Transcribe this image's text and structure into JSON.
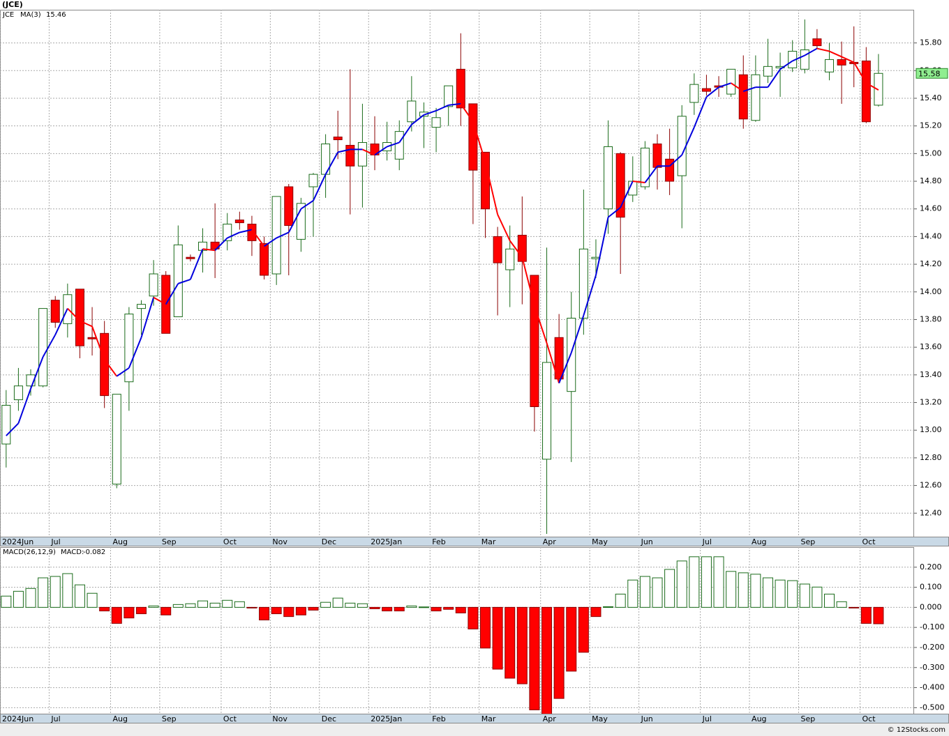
{
  "title": "(JCE)",
  "footer": "© 12Stocks.com",
  "chart_data": [
    {
      "type": "candlestick",
      "name": "JCE",
      "colors": {
        "up": "#1a6b1a",
        "down": "#ff0000"
      },
      "xlim": [
        -0.5,
        73.9
      ],
      "ylim": [
        12.23,
        16.04
      ],
      "grid": true,
      "xticks": [
        {
          "value": -0.5,
          "label": "2024Jun"
        },
        {
          "value": 3.5,
          "label": "Jul"
        },
        {
          "value": 8.5,
          "label": "Aug"
        },
        {
          "value": 12.5,
          "label": "Sep"
        },
        {
          "value": 17.5,
          "label": "Oct"
        },
        {
          "value": 21.5,
          "label": "Nov"
        },
        {
          "value": 25.5,
          "label": "Dec"
        },
        {
          "value": 29.5,
          "label": "2025Jan"
        },
        {
          "value": 34.5,
          "label": "Feb"
        },
        {
          "value": 38.5,
          "label": "Mar"
        },
        {
          "value": 43.5,
          "label": "Apr"
        },
        {
          "value": 47.5,
          "label": "May"
        },
        {
          "value": 51.5,
          "label": "Jun"
        },
        {
          "value": 56.5,
          "label": "Jul"
        },
        {
          "value": 60.5,
          "label": "Aug"
        },
        {
          "value": 64.5,
          "label": "Sep"
        },
        {
          "value": 69.5,
          "label": "Oct"
        }
      ],
      "yticks": [
        {
          "value": 12.4,
          "label": "12.40"
        },
        {
          "value": 12.6,
          "label": "12.60"
        },
        {
          "value": 12.8,
          "label": "12.80"
        },
        {
          "value": 13.0,
          "label": "13.00"
        },
        {
          "value": 13.2,
          "label": "13.20"
        },
        {
          "value": 13.4,
          "label": "13.40"
        },
        {
          "value": 13.6,
          "label": "13.60"
        },
        {
          "value": 13.8,
          "label": "13.80"
        },
        {
          "value": 14.0,
          "label": "14.00"
        },
        {
          "value": 14.2,
          "label": "14.20"
        },
        {
          "value": 14.4,
          "label": "14.40"
        },
        {
          "value": 14.6,
          "label": "14.60"
        },
        {
          "value": 14.8,
          "label": "14.80"
        },
        {
          "value": 15.0,
          "label": "15.00"
        },
        {
          "value": 15.2,
          "label": "15.20"
        },
        {
          "value": 15.4,
          "label": "15.40"
        },
        {
          "value": 15.6,
          "label": "15.60"
        },
        {
          "value": 15.8,
          "label": "15.80"
        }
      ],
      "open": [
        12.9,
        13.22,
        13.32,
        13.32,
        13.94,
        13.77,
        14.02,
        13.67,
        13.7,
        12.61,
        13.35,
        13.88,
        13.97,
        14.12,
        13.82,
        14.25,
        14.3,
        14.36,
        14.37,
        14.52,
        14.49,
        14.35,
        14.13,
        14.76,
        14.38,
        14.76,
        14.85,
        15.12,
        15.06,
        14.91,
        15.07,
        15.02,
        14.96,
        15.23,
        15.27,
        15.19,
        15.34,
        15.61,
        15.36,
        15.01,
        14.4,
        14.16,
        14.41,
        14.12,
        12.79,
        13.67,
        13.28,
        13.81,
        14.24,
        14.6,
        15.0,
        14.7,
        14.76,
        15.07,
        14.96,
        14.84,
        15.37,
        15.47,
        15.49,
        15.43,
        15.57,
        15.24,
        15.56,
        15.62,
        15.62,
        15.61,
        15.83,
        15.59,
        15.68,
        15.66,
        15.67,
        15.35
      ],
      "high": [
        13.29,
        13.45,
        13.44,
        13.88,
        13.97,
        14.06,
        14.02,
        13.89,
        13.79,
        13.26,
        13.89,
        13.94,
        14.23,
        14.15,
        14.48,
        14.27,
        14.46,
        14.64,
        14.57,
        14.58,
        14.55,
        14.4,
        14.69,
        14.78,
        14.68,
        14.86,
        15.14,
        15.31,
        15.61,
        15.36,
        15.27,
        15.23,
        15.24,
        15.56,
        15.37,
        15.33,
        15.49,
        15.87,
        15.36,
        15.01,
        14.47,
        14.48,
        14.69,
        14.12,
        14.32,
        13.84,
        14.0,
        14.74,
        14.38,
        15.24,
        15.01,
        14.98,
        15.09,
        15.14,
        15.18,
        15.35,
        15.58,
        15.57,
        15.56,
        15.61,
        15.71,
        15.71,
        15.83,
        15.73,
        15.82,
        15.97,
        15.9,
        15.8,
        15.81,
        15.92,
        15.77,
        15.72
      ],
      "low": [
        12.73,
        13.14,
        13.25,
        13.31,
        13.74,
        13.67,
        13.52,
        13.54,
        13.16,
        12.58,
        13.14,
        13.69,
        13.9,
        13.7,
        13.82,
        14.22,
        14.14,
        14.1,
        14.3,
        14.45,
        14.26,
        14.09,
        14.05,
        14.12,
        14.29,
        14.4,
        14.68,
        14.96,
        14.56,
        14.61,
        14.88,
        14.95,
        14.88,
        15.16,
        15.04,
        15.01,
        15.2,
        15.2,
        14.49,
        14.39,
        13.83,
        13.89,
        13.91,
        12.99,
        12.25,
        13.35,
        12.77,
        13.69,
        14.1,
        14.42,
        14.13,
        14.65,
        14.74,
        14.74,
        14.7,
        14.46,
        15.28,
        15.42,
        15.41,
        15.41,
        15.18,
        15.23,
        15.51,
        15.41,
        15.59,
        15.58,
        15.76,
        15.53,
        15.36,
        15.48,
        15.22,
        15.34
      ],
      "close": [
        13.18,
        13.32,
        13.4,
        13.88,
        13.78,
        13.98,
        13.61,
        13.66,
        13.25,
        13.26,
        13.84,
        13.91,
        14.13,
        13.7,
        14.34,
        14.24,
        14.36,
        14.31,
        14.49,
        14.5,
        14.37,
        14.12,
        14.69,
        14.48,
        14.64,
        14.85,
        15.07,
        15.1,
        14.91,
        15.08,
        14.99,
        15.08,
        15.16,
        15.38,
        15.3,
        15.26,
        15.49,
        15.33,
        14.88,
        14.6,
        14.21,
        14.31,
        14.22,
        13.17,
        13.49,
        13.37,
        13.81,
        14.31,
        14.25,
        15.05,
        14.54,
        14.8,
        15.04,
        14.9,
        14.8,
        15.27,
        15.5,
        15.45,
        15.48,
        15.61,
        15.25,
        15.57,
        15.63,
        15.63,
        15.74,
        15.75,
        15.78,
        15.68,
        15.64,
        15.65,
        15.23,
        15.58
      ],
      "last_color": "#90ee90",
      "ma": {
        "name": "MA(3)",
        "color_up": "#0000dd",
        "color_down": "#ff0000",
        "values": [
          12.96,
          13.05,
          13.3,
          13.53,
          13.69,
          13.88,
          13.79,
          13.75,
          13.51,
          13.39,
          13.45,
          13.67,
          13.96,
          13.91,
          14.06,
          14.09,
          14.31,
          14.3,
          14.39,
          14.43,
          14.45,
          14.33,
          14.39,
          14.43,
          14.6,
          14.66,
          14.85,
          15.01,
          15.03,
          15.03,
          14.99,
          15.05,
          15.08,
          15.21,
          15.28,
          15.31,
          15.35,
          15.36,
          15.23,
          14.94,
          14.56,
          14.37,
          14.25,
          13.9,
          13.63,
          13.34,
          13.56,
          13.83,
          14.12,
          14.54,
          14.61,
          14.8,
          14.79,
          14.91,
          14.91,
          14.99,
          15.19,
          15.41,
          15.48,
          15.51,
          15.45,
          15.48,
          15.48,
          15.61,
          15.67,
          15.71,
          15.76,
          15.74,
          15.7,
          15.66,
          15.51,
          15.46
        ]
      }
    },
    {
      "type": "bar",
      "name": "MACD(26,12,9)",
      "value_prefix": "MACD:",
      "legend_color": "#0000dd",
      "colors": {
        "up": "#1a6b1a",
        "down": "#ff0000"
      },
      "xlim": [
        -0.5,
        73.9
      ],
      "ylim": [
        -0.53,
        0.3
      ],
      "grid": true,
      "yticks": [
        {
          "value": 0.2,
          "label": "0.200"
        },
        {
          "value": 0.1,
          "label": "0.100"
        },
        {
          "value": 0,
          "label": "0.000"
        },
        {
          "value": -0.1,
          "label": "-0.100"
        },
        {
          "value": -0.2,
          "label": "-0.200"
        },
        {
          "value": -0.3,
          "label": "-0.300"
        },
        {
          "value": -0.4,
          "label": "-0.400"
        },
        {
          "value": -0.5,
          "label": "-0.500"
        }
      ],
      "values": [
        0.056,
        0.08,
        0.094,
        0.147,
        0.154,
        0.168,
        0.112,
        0.07,
        -0.018,
        -0.08,
        -0.053,
        -0.032,
        0.007,
        -0.038,
        0.014,
        0.018,
        0.032,
        0.021,
        0.035,
        0.028,
        -0.003,
        -0.063,
        -0.032,
        -0.046,
        -0.038,
        -0.014,
        0.025,
        0.046,
        0.021,
        0.018,
        -0.007,
        -0.018,
        -0.018,
        0.007,
        0.002,
        -0.018,
        -0.01,
        -0.028,
        -0.108,
        -0.203,
        -0.308,
        -0.353,
        -0.381,
        -0.511,
        -0.54,
        -0.454,
        -0.318,
        -0.224,
        -0.046,
        0.003,
        0.066,
        0.136,
        0.154,
        0.147,
        0.189,
        0.231,
        0.252,
        0.252,
        0.252,
        0.179,
        0.172,
        0.165,
        0.147,
        0.136,
        0.133,
        0.116,
        0.101,
        0.066,
        0.028,
        -0.003,
        -0.08,
        -0.082
      ]
    }
  ]
}
